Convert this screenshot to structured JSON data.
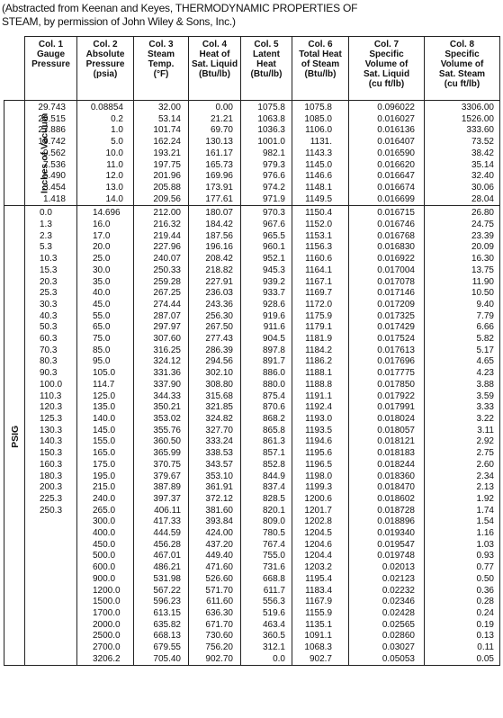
{
  "caption": {
    "line1": "(Abstracted from Keenan and Keyes, THERMODYNAMIC PROPERTIES OF",
    "line2": "STEAM, by permission of John Wiley & Sons, Inc.)"
  },
  "headers": [
    [
      "Col. 1",
      "Gauge",
      "Pressure"
    ],
    [
      "Col. 2",
      "Absolute",
      "Pressure",
      "(psia)"
    ],
    [
      "Col. 3",
      "Steam",
      "Temp.",
      "(°F)"
    ],
    [
      "Col. 4",
      "Heat of",
      "Sat. Liquid",
      "(Btu/lb)"
    ],
    [
      "Col. 5",
      "Latent",
      "Heat",
      "(Btu/lb)"
    ],
    [
      "Col. 6",
      "Total Heat",
      "of Steam",
      "(Btu/lb)"
    ],
    [
      "Col. 7",
      "Specific",
      "Volume of",
      "Sat. Liquid",
      "(cu ft/lb)"
    ],
    [
      "Col. 8",
      "Specific",
      "Volume of",
      "Sat. Steam",
      "(cu ft/lb)"
    ]
  ],
  "sections": [
    {
      "label": "Inches of Vacuum",
      "rows": [
        [
          "29.743",
          "0.08854",
          "32.00",
          "0.00",
          "1075.8",
          "1075.8",
          "0.096022",
          "3306.00"
        ],
        [
          "29.515",
          "0.2",
          "53.14",
          "21.21",
          "1063.8",
          "1085.0",
          "0.016027",
          "1526.00"
        ],
        [
          "27.886",
          "1.0",
          "101.74",
          "69.70",
          "1036.3",
          "1106.0",
          "0.016136",
          "333.60"
        ],
        [
          "19.742",
          "5.0",
          "162.24",
          "130.13",
          "1001.0",
          "1131.",
          "0.016407",
          "73.52"
        ],
        [
          "9.562",
          "10.0",
          "193.21",
          "161.17",
          "982.1",
          "1143.3",
          "0.016590",
          "38.42"
        ],
        [
          "7.536",
          "11.0",
          "197.75",
          "165.73",
          "979.3",
          "1145.0",
          "0.016620",
          "35.14"
        ],
        [
          "5.490",
          "12.0",
          "201.96",
          "169.96",
          "976.6",
          "1146.6",
          "0.016647",
          "32.40"
        ],
        [
          "3.454",
          "13.0",
          "205.88",
          "173.91",
          "974.2",
          "1148.1",
          "0.016674",
          "30.06"
        ],
        [
          "1.418",
          "14.0",
          "209.56",
          "177.61",
          "971.9",
          "1149.5",
          "0.016699",
          "28.04"
        ]
      ]
    },
    {
      "label": "PSIG",
      "rows": [
        [
          "0.0",
          "14.696",
          "212.00",
          "180.07",
          "970.3",
          "1150.4",
          "0.016715",
          "26.80"
        ],
        [
          "1.3",
          "16.0",
          "216.32",
          "184.42",
          "967.6",
          "1152.0",
          "0.016746",
          "24.75"
        ],
        [
          "2.3",
          "17.0",
          "219.44",
          "187.56",
          "965.5",
          "1153.1",
          "0.016768",
          "23.39"
        ],
        [
          "5.3",
          "20.0",
          "227.96",
          "196.16",
          "960.1",
          "1156.3",
          "0.016830",
          "20.09"
        ],
        [
          "10.3",
          "25.0",
          "240.07",
          "208.42",
          "952.1",
          "1160.6",
          "0.016922",
          "16.30"
        ],
        [
          "15.3",
          "30.0",
          "250.33",
          "218.82",
          "945.3",
          "1164.1",
          "0.017004",
          "13.75"
        ],
        [
          "20.3",
          "35.0",
          "259.28",
          "227.91",
          "939.2",
          "1167.1",
          "0.017078",
          "11.90"
        ],
        [
          "25.3",
          "40.0",
          "267.25",
          "236.03",
          "933.7",
          "1169.7",
          "0.017146",
          "10.50"
        ],
        [
          "30.3",
          "45.0",
          "274.44",
          "243.36",
          "928.6",
          "1172.0",
          "0.017209",
          "9.40"
        ],
        [
          "40.3",
          "55.0",
          "287.07",
          "256.30",
          "919.6",
          "1175.9",
          "0.017325",
          "7.79"
        ],
        [
          "50.3",
          "65.0",
          "297.97",
          "267.50",
          "911.6",
          "1179.1",
          "0.017429",
          "6.66"
        ],
        [
          "60.3",
          "75.0",
          "307.60",
          "277.43",
          "904.5",
          "1181.9",
          "0.017524",
          "5.82"
        ],
        [
          "70.3",
          "85.0",
          "316.25",
          "286.39",
          "897.8",
          "1184.2",
          "0.017613",
          "5.17"
        ],
        [
          "80.3",
          "95.0",
          "324.12",
          "294.56",
          "891.7",
          "1186.2",
          "0.017696",
          "4.65"
        ],
        [
          "90.3",
          "105.0",
          "331.36",
          "302.10",
          "886.0",
          "1188.1",
          "0.017775",
          "4.23"
        ],
        [
          "100.0",
          "114.7",
          "337.90",
          "308.80",
          "880.0",
          "1188.8",
          "0.017850",
          "3.88"
        ],
        [
          "110.3",
          "125.0",
          "344.33",
          "315.68",
          "875.4",
          "1191.1",
          "0.017922",
          "3.59"
        ],
        [
          "120.3",
          "135.0",
          "350.21",
          "321.85",
          "870.6",
          "1192.4",
          "0.017991",
          "3.33"
        ],
        [
          "125.3",
          "140.0",
          "353.02",
          "324.82",
          "868.2",
          "1193.0",
          "0.018024",
          "3.22"
        ],
        [
          "130.3",
          "145.0",
          "355.76",
          "327.70",
          "865.8",
          "1193.5",
          "0.018057",
          "3.11"
        ],
        [
          "140.3",
          "155.0",
          "360.50",
          "333.24",
          "861.3",
          "1194.6",
          "0.018121",
          "2.92"
        ],
        [
          "150.3",
          "165.0",
          "365.99",
          "338.53",
          "857.1",
          "1195.6",
          "0.018183",
          "2.75"
        ],
        [
          "160.3",
          "175.0",
          "370.75",
          "343.57",
          "852.8",
          "1196.5",
          "0.018244",
          "2.60"
        ],
        [
          "180.3",
          "195.0",
          "379.67",
          "353.10",
          "844.9",
          "1198.0",
          "0.018360",
          "2.34"
        ],
        [
          "200.3",
          "215.0",
          "387.89",
          "361.91",
          "837.4",
          "1199.3",
          "0.018470",
          "2.13"
        ],
        [
          "225.3",
          "240.0",
          "397.37",
          "372.12",
          "828.5",
          "1200.6",
          "0.018602",
          "1.92"
        ],
        [
          "250.3",
          "265.0",
          "406.11",
          "381.60",
          "820.1",
          "1201.7",
          "0.018728",
          "1.74"
        ],
        [
          "",
          "300.0",
          "417.33",
          "393.84",
          "809.0",
          "1202.8",
          "0.018896",
          "1.54"
        ],
        [
          "",
          "400.0",
          "444.59",
          "424.00",
          "780.5",
          "1204.5",
          "0.019340",
          "1.16"
        ],
        [
          "",
          "450.0",
          "456.28",
          "437.20",
          "767.4",
          "1204.6",
          "0.019547",
          "1.03"
        ],
        [
          "",
          "500.0",
          "467.01",
          "449.40",
          "755.0",
          "1204.4",
          "0.019748",
          "0.93"
        ],
        [
          "",
          "600.0",
          "486.21",
          "471.60",
          "731.6",
          "1203.2",
          "0.02013",
          "0.77"
        ],
        [
          "",
          "900.0",
          "531.98",
          "526.60",
          "668.8",
          "1195.4",
          "0.02123",
          "0.50"
        ],
        [
          "",
          "1200.0",
          "567.22",
          "571.70",
          "611.7",
          "1183.4",
          "0.02232",
          "0.36"
        ],
        [
          "",
          "1500.0",
          "596.23",
          "611.60",
          "556.3",
          "1167.9",
          "0.02346",
          "0.28"
        ],
        [
          "",
          "1700.0",
          "613.15",
          "636.30",
          "519.6",
          "1155.9",
          "0.02428",
          "0.24"
        ],
        [
          "",
          "2000.0",
          "635.82",
          "671.70",
          "463.4",
          "1135.1",
          "0.02565",
          "0.19"
        ],
        [
          "",
          "2500.0",
          "668.13",
          "730.60",
          "360.5",
          "1091.1",
          "0.02860",
          "0.13"
        ],
        [
          "",
          "2700.0",
          "679.55",
          "756.20",
          "312.1",
          "1068.3",
          "0.03027",
          "0.11"
        ],
        [
          "",
          "3206.2",
          "705.40",
          "902.70",
          "0.0",
          "902.7",
          "0.05053",
          "0.05"
        ]
      ]
    }
  ]
}
